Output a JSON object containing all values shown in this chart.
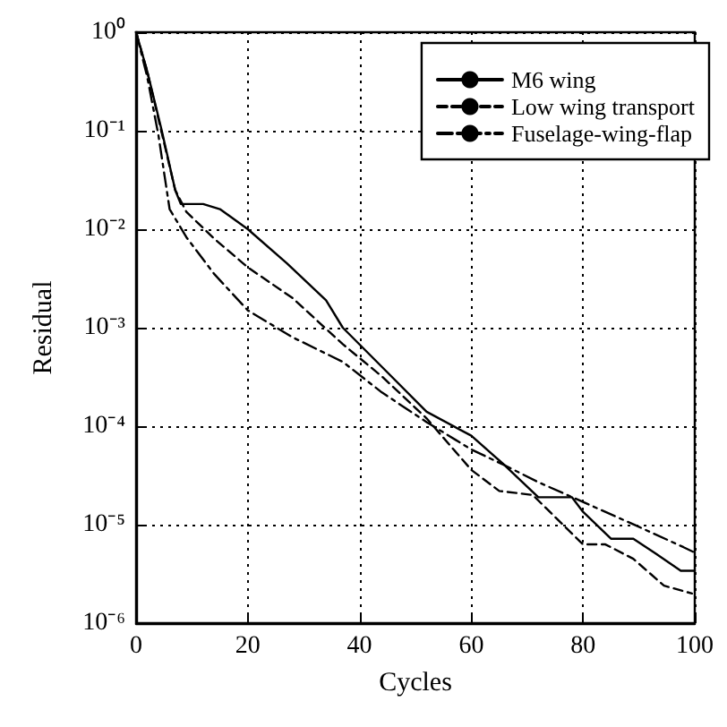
{
  "chart_data": {
    "type": "line",
    "xlabel": "Cycles",
    "ylabel": "Residual",
    "log": "y",
    "grid": true,
    "legend": "top right",
    "marker": "none",
    "xlim": [
      0,
      100
    ],
    "xticks": [
      0,
      20,
      40,
      60,
      80,
      100
    ],
    "ylim": [
      1e-06,
      1
    ],
    "yticks": [
      {
        "value": 1,
        "label": "10⁰"
      },
      {
        "value": 0.1,
        "label": "10⁻¹"
      },
      {
        "value": 0.01,
        "label": "10⁻²"
      },
      {
        "value": 0.001,
        "label": "10⁻³"
      },
      {
        "value": 0.0001,
        "label": "10⁻⁴"
      },
      {
        "value": 1e-05,
        "label": "10⁻⁵"
      },
      {
        "value": 1e-06,
        "label": "10⁻⁶"
      }
    ],
    "series": [
      {
        "name": "M6 wing",
        "color": "#000000",
        "line_style": "solid",
        "x": [
          0,
          2,
          4.6,
          7,
          8,
          12,
          15,
          20,
          27,
          34,
          37,
          44,
          52,
          60,
          66,
          72,
          78,
          80,
          85,
          89,
          93,
          97.5,
          100
        ],
        "values": [
          1,
          0.4,
          0.1,
          0.025,
          0.018,
          0.018,
          0.016,
          0.01,
          0.0045,
          0.0019,
          0.001,
          0.0004,
          0.00014,
          8e-05,
          4e-05,
          1.9e-05,
          1.9e-05,
          1.35e-05,
          7.2e-06,
          7.2e-06,
          5.1e-06,
          3.4e-06,
          3.4e-06
        ]
      },
      {
        "name": "Low wing transport",
        "color": "#000000",
        "line_style": "dashed",
        "x": [
          0,
          2,
          4.5,
          7,
          9,
          14,
          20,
          28,
          37,
          44,
          52,
          60,
          65,
          71,
          76,
          80,
          84,
          89,
          94.5,
          99.5
        ],
        "values": [
          1,
          0.4,
          0.1,
          0.025,
          0.015,
          0.008,
          0.0041,
          0.002,
          0.00068,
          0.00032,
          0.00012,
          3.6e-05,
          2.2e-05,
          2e-05,
          1.05e-05,
          6.3e-06,
          6.3e-06,
          4.5e-06,
          2.4e-06,
          2e-06
        ]
      },
      {
        "name": "Fuselage-wing-flap",
        "color": "#000000",
        "line_style": "dashdot",
        "x": [
          0,
          2,
          4,
          6,
          9,
          14,
          20,
          28,
          37,
          44,
          52,
          60,
          66,
          72,
          80,
          90,
          98,
          100
        ],
        "values": [
          1,
          0.35,
          0.09,
          0.016,
          0.0083,
          0.0035,
          0.0015,
          0.0008,
          0.00045,
          0.00022,
          0.00011,
          5.8e-05,
          4e-05,
          2.7e-05,
          1.7e-05,
          9.5e-06,
          5.9e-06,
          5.2e-06
        ]
      }
    ]
  }
}
